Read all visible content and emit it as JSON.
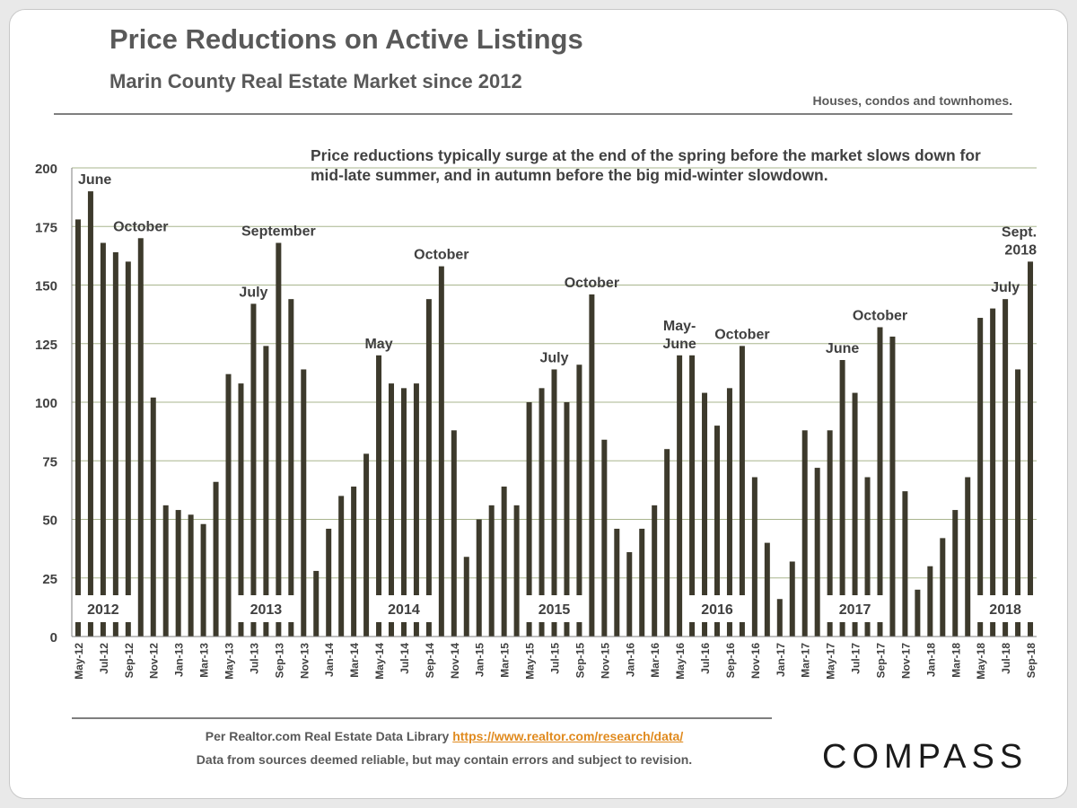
{
  "header": {
    "title": "Price Reductions on Active Listings",
    "subtitle": "Marin County Real Estate Market since 2012",
    "note": "Houses, condos and townhomes."
  },
  "annotation": "Price reductions typically surge at the end of the spring before the market slows down for mid-late summer, and in autumn before the big mid-winter slowdown.",
  "footer": {
    "source_prefix": "Per Realtor.com Real Estate  Data Library ",
    "source_link": "https://www.realtor.com/research/data/",
    "disclaimer": "Data from sources deemed reliable, but may contain errors and subject to revision."
  },
  "logo": "COMPASS",
  "colors": {
    "bar": "#3d3a2c",
    "grid": "#a9b58e",
    "axis_text": "#404040",
    "link": "#e08a1e"
  },
  "chart_data": {
    "type": "bar",
    "ylim": [
      0,
      200
    ],
    "yticks": [
      0,
      25,
      50,
      75,
      100,
      125,
      150,
      175,
      200
    ],
    "grid": true,
    "categories": [
      "May-12",
      "Jun-12",
      "Jul-12",
      "Aug-12",
      "Sep-12",
      "Oct-12",
      "Nov-12",
      "Dec-12",
      "Jan-13",
      "Feb-13",
      "Mar-13",
      "Apr-13",
      "May-13",
      "Jun-13",
      "Jul-13",
      "Aug-13",
      "Sep-13",
      "Oct-13",
      "Nov-13",
      "Dec-13",
      "Jan-14",
      "Feb-14",
      "Mar-14",
      "Apr-14",
      "May-14",
      "Jun-14",
      "Jul-14",
      "Aug-14",
      "Sep-14",
      "Oct-14",
      "Nov-14",
      "Dec-14",
      "Jan-15",
      "Feb-15",
      "Mar-15",
      "Apr-15",
      "May-15",
      "Jun-15",
      "Jul-15",
      "Aug-15",
      "Sep-15",
      "Oct-15",
      "Nov-15",
      "Dec-15",
      "Jan-16",
      "Feb-16",
      "Mar-16",
      "Apr-16",
      "May-16",
      "Jun-16",
      "Jul-16",
      "Aug-16",
      "Sep-16",
      "Oct-16",
      "Nov-16",
      "Dec-16",
      "Jan-17",
      "Feb-17",
      "Mar-17",
      "Apr-17",
      "May-17",
      "Jun-17",
      "Jul-17",
      "Aug-17",
      "Sep-17",
      "Oct-17",
      "Nov-17",
      "Dec-17",
      "Jan-18",
      "Feb-18",
      "Mar-18",
      "Apr-18",
      "May-18",
      "Jun-18",
      "Jul-18",
      "Aug-18",
      "Sep-18"
    ],
    "tick_labels": [
      "May-12",
      "Jul-12",
      "Sep-12",
      "Nov-12",
      "Jan-13",
      "Mar-13",
      "May-13",
      "Jul-13",
      "Sep-13",
      "Nov-13",
      "Jan-14",
      "Mar-14",
      "May-14",
      "Jul-14",
      "Sep-14",
      "Nov-14",
      "Jan-15",
      "Mar-15",
      "May-15",
      "Jul-15",
      "Sep-15",
      "Nov-15",
      "Jan-16",
      "Mar-16",
      "May-16",
      "Jul-16",
      "Sep-16",
      "Nov-16",
      "Jan-17",
      "Mar-17",
      "May-17",
      "Jul-17",
      "Sep-17",
      "Nov-17",
      "Jan-18",
      "Mar-18",
      "May-18",
      "Jul-18",
      "Sep-18"
    ],
    "values": [
      178,
      190,
      168,
      164,
      160,
      170,
      102,
      56,
      54,
      52,
      48,
      66,
      112,
      108,
      142,
      124,
      168,
      144,
      114,
      28,
      46,
      60,
      64,
      78,
      120,
      108,
      106,
      108,
      144,
      158,
      88,
      34,
      50,
      56,
      64,
      56,
      100,
      106,
      114,
      100,
      116,
      146,
      84,
      46,
      36,
      46,
      56,
      80,
      120,
      120,
      104,
      90,
      106,
      124,
      68,
      40,
      16,
      32,
      88,
      72,
      88,
      118,
      104,
      68,
      132,
      128,
      62,
      20,
      30,
      42,
      54,
      68,
      136,
      140,
      144,
      114,
      160
    ],
    "year_labels": [
      {
        "text": "2012",
        "category": "Jul-12"
      },
      {
        "text": "2013",
        "category": "Aug-13"
      },
      {
        "text": "2014",
        "category": "Jul-14"
      },
      {
        "text": "2015",
        "category": "Jul-15"
      },
      {
        "text": "2016",
        "category": "Aug-16"
      },
      {
        "text": "2017",
        "category": "Jul-17"
      },
      {
        "text": "2018",
        "category": "Jul-18"
      }
    ],
    "annotations": [
      {
        "text": "June",
        "category": "Jun-12",
        "value": 190
      },
      {
        "text": "October",
        "category": "Oct-12",
        "value": 170
      },
      {
        "text": "July",
        "category": "Jul-13",
        "value": 142
      },
      {
        "text": "September",
        "category": "Sep-13",
        "value": 168
      },
      {
        "text": "May",
        "category": "May-14",
        "value": 120
      },
      {
        "text": "October",
        "category": "Oct-14",
        "value": 158
      },
      {
        "text": "July",
        "category": "Jul-15",
        "value": 114
      },
      {
        "text": "October",
        "category": "Oct-15",
        "value": 146
      },
      {
        "text": "May-\nJune",
        "category": "May-16",
        "value": 120
      },
      {
        "text": "October",
        "category": "Oct-16",
        "value": 124
      },
      {
        "text": "June",
        "category": "Jun-17",
        "value": 118
      },
      {
        "text": "October",
        "category": "Sep-17",
        "value": 132
      },
      {
        "text": "July",
        "category": "Jul-18",
        "value": 144
      },
      {
        "text": "Sept.\n2018",
        "category": "Sep-18",
        "value": 160
      }
    ]
  }
}
